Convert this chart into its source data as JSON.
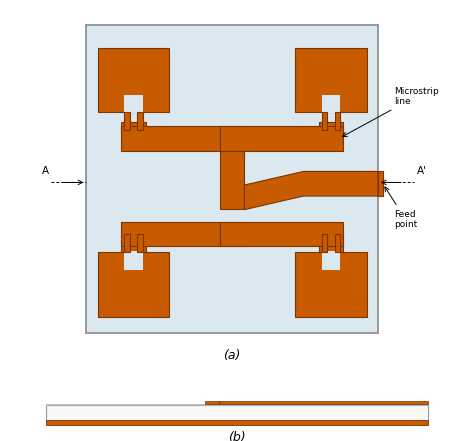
{
  "fig_width": 4.74,
  "fig_height": 4.41,
  "dpi": 100,
  "bg_color": "#ffffff",
  "substrate_color": "#dce8f0",
  "substrate_edge_color": "#888888",
  "copper_color": "#c85a00",
  "copper_edge_color": "#7a3500",
  "label_a": "A",
  "label_a_prime": "A'",
  "label_microstrip": "Microstrip\nline",
  "label_feed": "Feed\npoint",
  "label_a_caption": "(a)",
  "label_b_caption": "(b)"
}
